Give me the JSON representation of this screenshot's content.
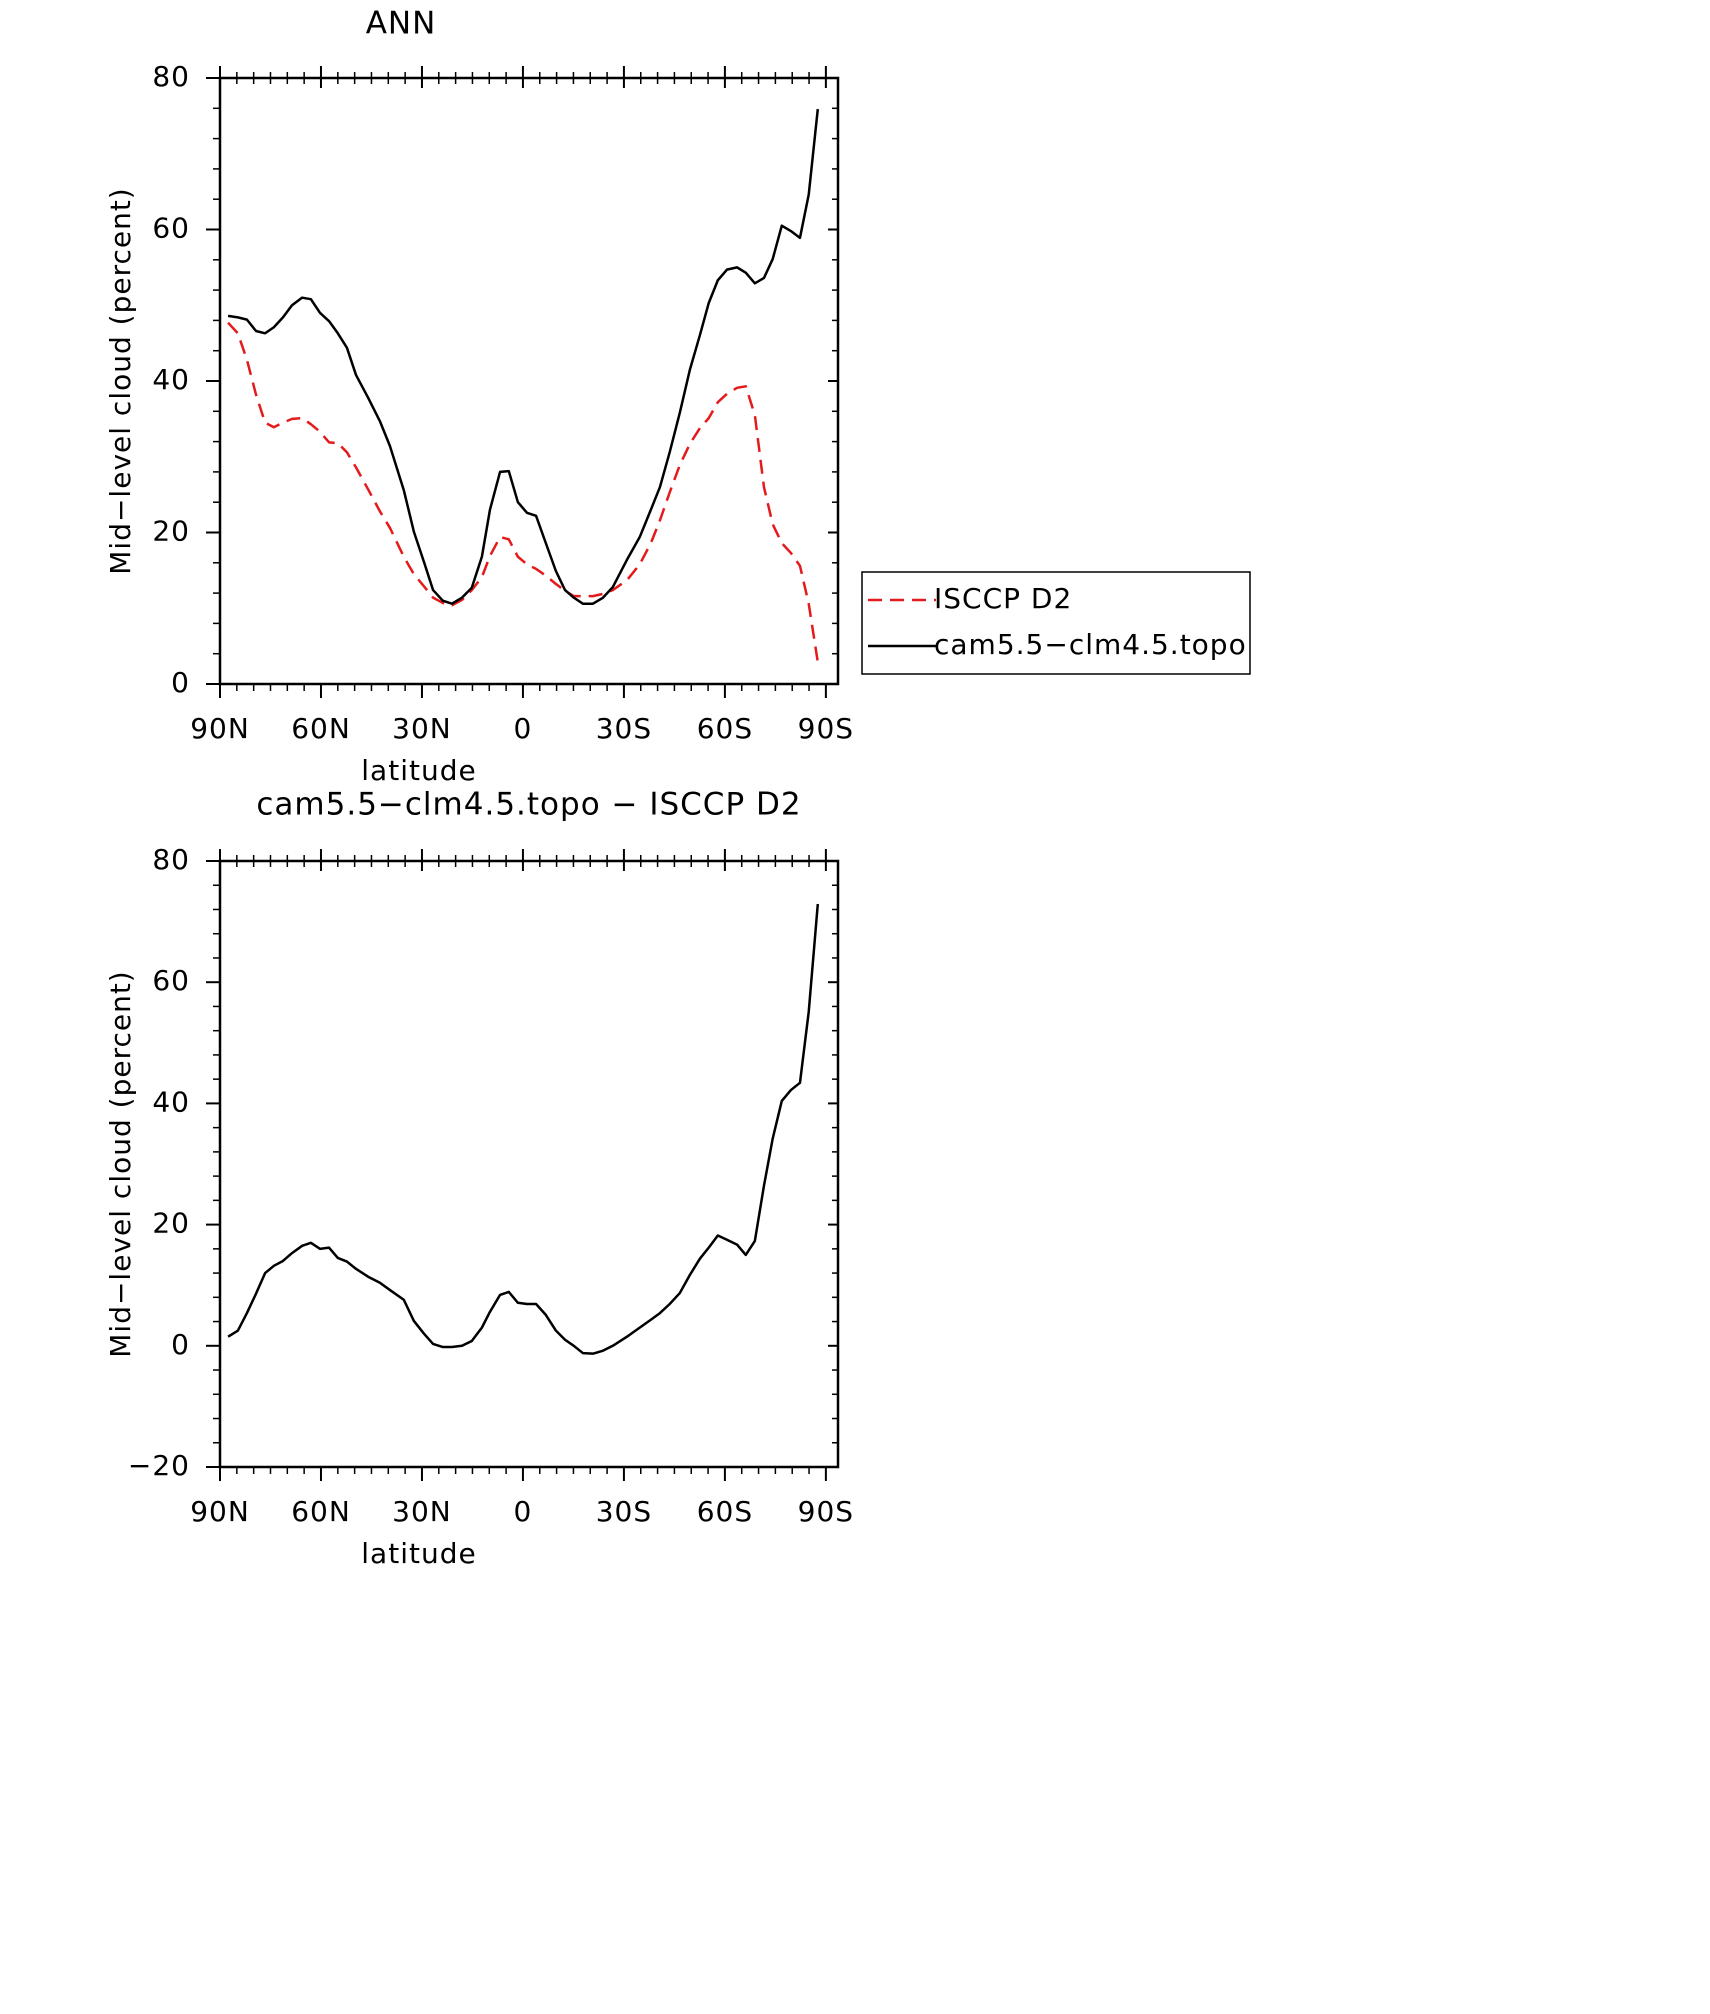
{
  "chart_data": [
    {
      "type": "line",
      "title": "ANN",
      "x_label": "latitude",
      "y_label": "Mid−level cloud (percent)",
      "legend": "right",
      "x": [
        87.6,
        84.7,
        82,
        79.3,
        76.6,
        74,
        71.3,
        68.6,
        65.6,
        63,
        60.3,
        57.6,
        55,
        52.3,
        49.6,
        46,
        42.5,
        39.5,
        35.4,
        32.4,
        29.4,
        26.7,
        23.8,
        21.1,
        18.1,
        15.2,
        12.2,
        9.8,
        6.8,
        4.2,
        1.5,
        -1.2,
        -3.9,
        -6.8,
        -9.8,
        -12.5,
        -15.1,
        -17.8,
        -20.8,
        -23.8,
        -26.7,
        -30.9,
        -34.7,
        -38,
        -40.7,
        -43.6,
        -46.6,
        -49.6,
        -52.6,
        -55.2,
        -57.9,
        -60.6,
        -63.6,
        -66.2,
        -68.9,
        -71.6,
        -74.2,
        -76.9,
        -79.6,
        -82.3,
        -84.9,
        -87.6
      ],
      "series": [
        {
          "name": "ISCCP D2",
          "color": "#e41a1c",
          "line_style": "dashed",
          "values": [
            47.7,
            46.3,
            42.8,
            38.2,
            34.5,
            33.9,
            34.5,
            35.0,
            35.1,
            34.3,
            33.3,
            31.9,
            31.8,
            30.6,
            28.6,
            25.7,
            22.8,
            20.6,
            16.8,
            14.5,
            12.9,
            11.4,
            10.7,
            10.4,
            11.1,
            12.4,
            14.1,
            16.9,
            19.4,
            19.1,
            16.8,
            15.8,
            15.2,
            14.3,
            13.2,
            12.3,
            11.6,
            11.6,
            11.6,
            11.9,
            12.4,
            13.7,
            15.8,
            18.6,
            21.6,
            25.3,
            28.9,
            31.7,
            33.8,
            35.1,
            37.2,
            38.3,
            39.1,
            39.3,
            35.5,
            26.0,
            21.1,
            18.6,
            17.3,
            15.6,
            10.6,
            2.9
          ]
        },
        {
          "name": "cam5.5−clm4.5.topo",
          "color": "#000000",
          "line_style": "solid",
          "values": [
            48.6,
            48.4,
            48.1,
            46.6,
            46.3,
            47.1,
            48.4,
            50.0,
            51.0,
            50.8,
            49.0,
            47.9,
            46.3,
            44.4,
            40.8,
            37.8,
            34.7,
            31.4,
            25.6,
            20.1,
            16.1,
            12.4,
            11.0,
            10.6,
            11.4,
            12.7,
            16.8,
            23.0,
            28.0,
            28.1,
            24.0,
            22.6,
            22.2,
            18.6,
            14.9,
            12.4,
            11.4,
            10.6,
            10.6,
            11.4,
            12.8,
            16.4,
            19.4,
            23.0,
            26.0,
            30.6,
            35.8,
            41.5,
            46.1,
            50.3,
            53.3,
            54.7,
            55.0,
            54.3,
            52.9,
            53.6,
            56.1,
            60.5,
            59.8,
            58.9,
            64.6,
            75.9
          ]
        }
      ],
      "xlim": [
        90,
        -93.6
      ],
      "xticks": [
        {
          "value": 90,
          "label": "90N"
        },
        {
          "value": 60,
          "label": "60N"
        },
        {
          "value": 30,
          "label": "30N"
        },
        0,
        {
          "value": -30,
          "label": "30S"
        },
        {
          "value": -60,
          "label": "60S"
        },
        {
          "value": -90,
          "label": "90S"
        }
      ],
      "ylim": [
        0,
        80
      ],
      "yticks": [
        0,
        20,
        40,
        60,
        80
      ]
    },
    {
      "type": "line",
      "title": "cam5.5−clm4.5.topo − ISCCP D2",
      "x_label": "latitude",
      "y_label": "Mid−level cloud (percent)",
      "x": [
        87.6,
        84.7,
        82,
        79.3,
        76.6,
        74,
        71.3,
        68.6,
        65.6,
        63,
        60.3,
        57.6,
        55,
        52.3,
        49.6,
        46,
        42.5,
        39.5,
        35.4,
        32.4,
        29.4,
        26.7,
        23.8,
        21.1,
        18.1,
        15.2,
        12.2,
        9.8,
        6.8,
        4.2,
        1.5,
        -1.2,
        -3.9,
        -6.8,
        -9.8,
        -12.5,
        -15.1,
        -17.8,
        -20.8,
        -23.8,
        -26.7,
        -30.9,
        -34.7,
        -38,
        -40.7,
        -43.6,
        -46.6,
        -49.6,
        -52.6,
        -55.2,
        -57.9,
        -60.6,
        -63.6,
        -66.2,
        -68.9,
        -71.6,
        -74.2,
        -76.9,
        -79.6,
        -82.3,
        -84.9,
        -87.6
      ],
      "series": [
        {
          "color": "#000000",
          "line_style": "solid",
          "values": [
            1.5,
            2.5,
            5.4,
            8.6,
            12.0,
            13.2,
            14.0,
            15.3,
            16.5,
            17.0,
            16.0,
            16.2,
            14.5,
            13.9,
            12.7,
            11.4,
            10.4,
            9.2,
            7.6,
            4.1,
            2.0,
            0.3,
            -0.2,
            -0.2,
            0,
            0.8,
            3.0,
            5.6,
            8.4,
            8.9,
            7.1,
            6.9,
            6.9,
            5.1,
            2.5,
            1.0,
            0,
            -1.2,
            -1.3,
            -0.8,
            0,
            1.5,
            3.0,
            4.3,
            5.4,
            6.9,
            8.7,
            11.7,
            14.4,
            16.2,
            18.2,
            17.5,
            16.7,
            15.0,
            17.3,
            26.4,
            34.2,
            40.4,
            42.2,
            43.4,
            55.1,
            72.9
          ]
        }
      ],
      "xlim": [
        90,
        -93.6
      ],
      "xticks": [
        {
          "value": 90,
          "label": "90N"
        },
        {
          "value": 60,
          "label": "60N"
        },
        {
          "value": 30,
          "label": "30N"
        },
        0,
        {
          "value": -30,
          "label": "30S"
        },
        {
          "value": -60,
          "label": "60S"
        },
        {
          "value": -90,
          "label": "90S"
        }
      ],
      "ylim": [
        -20,
        80
      ],
      "yticks": [
        {
          "value": -20,
          "label": "−20"
        },
        0,
        20,
        40,
        60,
        80
      ]
    }
  ]
}
